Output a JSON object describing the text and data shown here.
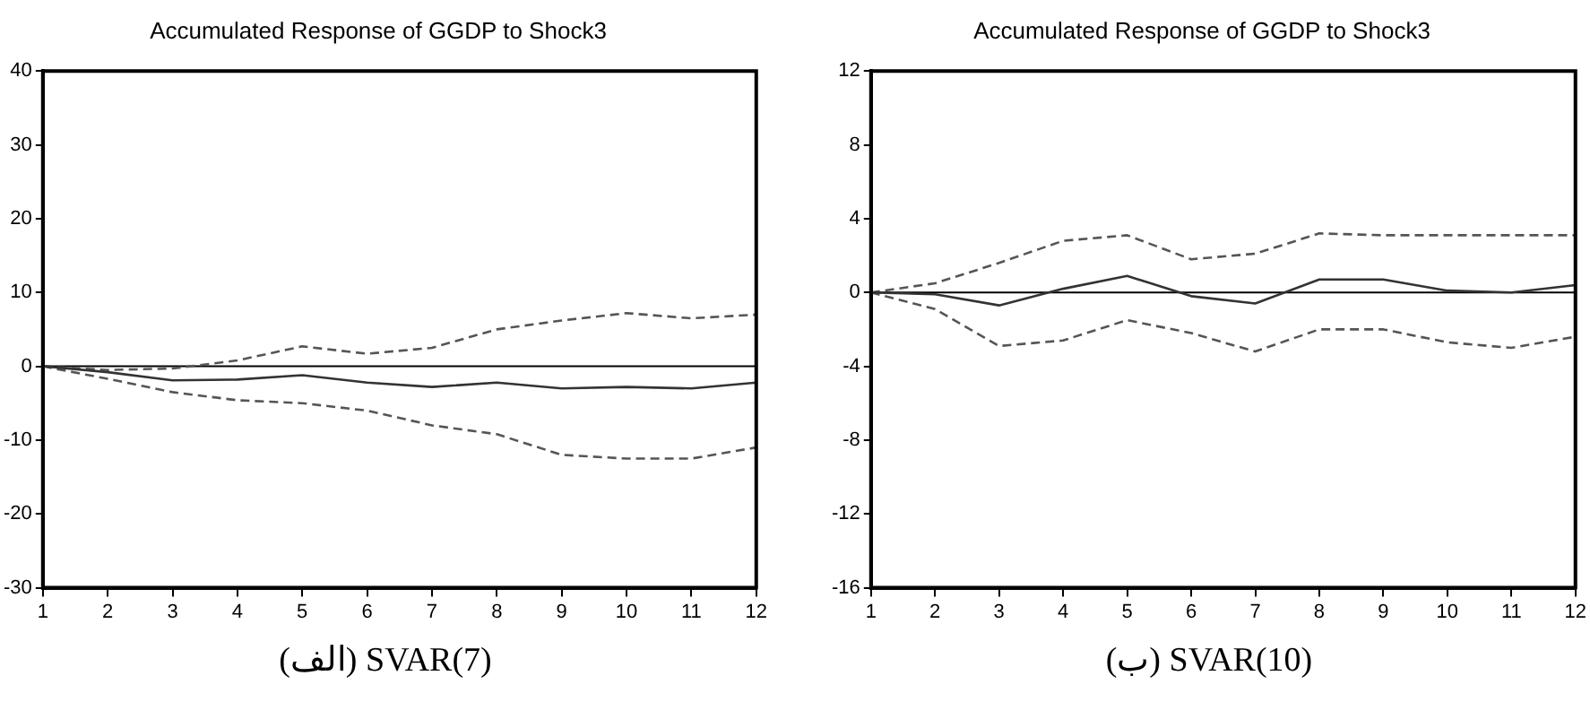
{
  "chart_data": [
    {
      "type": "line",
      "title": "Accumulated Response of GGDP to Shock3",
      "x": [
        1,
        2,
        3,
        4,
        5,
        6,
        7,
        8,
        9,
        10,
        11,
        12
      ],
      "xlim": [
        1,
        12
      ],
      "xticks": [
        1,
        2,
        3,
        4,
        5,
        6,
        7,
        8,
        9,
        10,
        11,
        12
      ],
      "ylim": [
        -30,
        40
      ],
      "yticks": [
        -30,
        -20,
        -10,
        0,
        10,
        20,
        30,
        40
      ],
      "grid": false,
      "legend": false,
      "marker": "none",
      "series": [
        {
          "color": "#333333",
          "line_style": "solid",
          "values": [
            0,
            -0.8,
            -1.9,
            -1.8,
            -1.2,
            -2.2,
            -2.8,
            -2.2,
            -3,
            -2.8,
            -3,
            -2.2
          ]
        },
        {
          "color": "#555555",
          "line_style": "dashed",
          "values": [
            0,
            -0.5,
            -0.3,
            0.8,
            2.7,
            1.7,
            2.5,
            5,
            6.2,
            7.2,
            6.5,
            7
          ]
        },
        {
          "color": "#555555",
          "line_style": "dashed",
          "values": [
            0,
            -1.7,
            -3.5,
            -4.6,
            -5,
            -6,
            -8,
            -9.2,
            -12,
            -12.5,
            -12.5,
            -11
          ]
        }
      ],
      "ref_lines": [
        {
          "axis": "y",
          "value": 0,
          "color": "#000000"
        }
      ],
      "annotations": [
        "(الف) SVAR(7)"
      ]
    },
    {
      "type": "line",
      "title": "Accumulated Response of GGDP to Shock3",
      "x": [
        1,
        2,
        3,
        4,
        5,
        6,
        7,
        8,
        9,
        10,
        11,
        12
      ],
      "xlim": [
        1,
        12
      ],
      "xticks": [
        1,
        2,
        3,
        4,
        5,
        6,
        7,
        8,
        9,
        10,
        11,
        12
      ],
      "ylim": [
        -16,
        12
      ],
      "yticks": [
        -16,
        -12,
        -8,
        -4,
        0,
        4,
        8,
        12
      ],
      "grid": false,
      "legend": false,
      "marker": "none",
      "series": [
        {
          "color": "#333333",
          "line_style": "solid",
          "values": [
            0,
            -0.1,
            -0.7,
            0.2,
            0.9,
            -0.2,
            -0.6,
            0.7,
            0.7,
            0.1,
            0,
            0.4
          ]
        },
        {
          "color": "#555555",
          "line_style": "dashed",
          "values": [
            0,
            0.5,
            1.6,
            2.8,
            3.1,
            1.8,
            2.1,
            3.2,
            3.1,
            3.1,
            3.1,
            3.1
          ]
        },
        {
          "color": "#555555",
          "line_style": "dashed",
          "values": [
            0,
            -0.9,
            -2.9,
            -2.6,
            -1.5,
            -2.2,
            -3.2,
            -2,
            -2,
            -2.7,
            -3,
            -2.4
          ]
        }
      ],
      "ref_lines": [
        {
          "axis": "y",
          "value": 0,
          "color": "#000000"
        }
      ],
      "annotations": [
        "(ب) SVAR(10)"
      ]
    }
  ]
}
